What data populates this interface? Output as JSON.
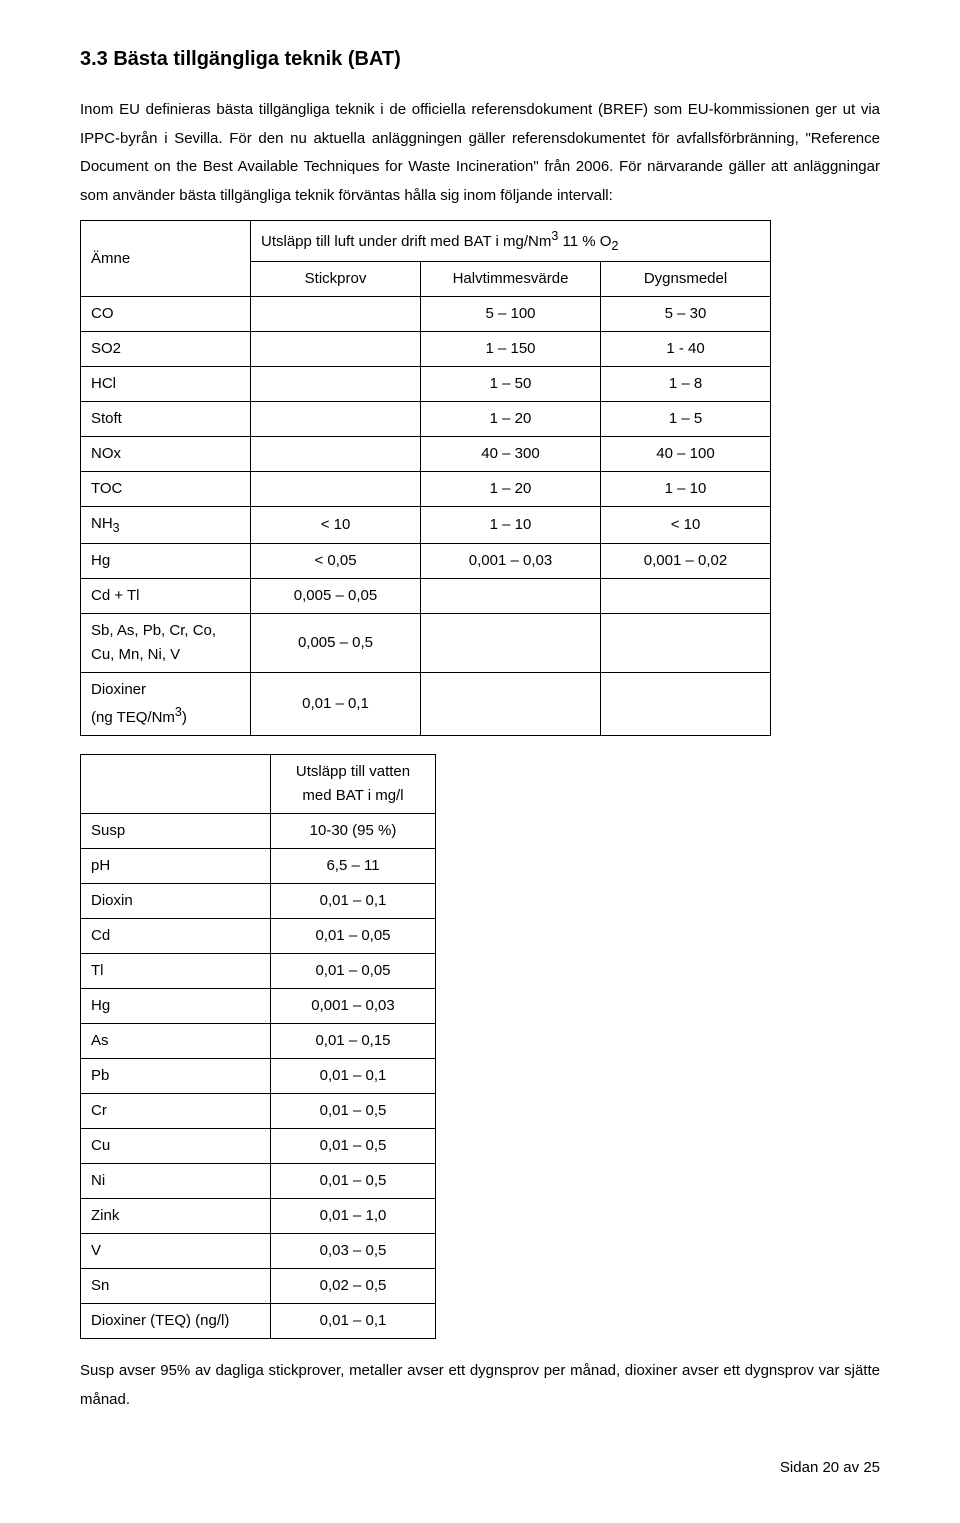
{
  "heading": "3.3 Bästa tillgängliga teknik (BAT)",
  "para1": "Inom EU definieras bästa tillgängliga teknik i de officiella referensdokument (BREF) som EU-kommissionen ger ut via IPPC-byrån i Sevilla. För den nu aktuella anläggningen gäller referensdokumentet för avfallsförbränning, \"Reference Document on the Best Available Techniques for Waste Incineration\" från 2006. För närvarande gäller att anläggningar som använder bästa tillgängliga teknik förväntas hålla sig inom följande intervall:",
  "air_table": {
    "col1_header": "Ämne",
    "caption_row1": "Utsläpp till luft under drift med BAT i mg/Nm",
    "caption_sup": "3",
    "caption_tail": " 11 % O",
    "caption_sub": "2",
    "sub_headers": [
      "Stickprov",
      "Halvtimmesvärde",
      "Dygnsmedel"
    ],
    "rows": [
      {
        "label": "CO",
        "c2": "",
        "c3": "5 – 100",
        "c4": "5 – 30"
      },
      {
        "label": "SO2",
        "c2": "",
        "c3": "1 – 150",
        "c4": "1 - 40"
      },
      {
        "label": "HCl",
        "c2": "",
        "c3": "1 – 50",
        "c4": "1 – 8"
      },
      {
        "label": "Stoft",
        "c2": "",
        "c3": "1 – 20",
        "c4": "1 – 5"
      },
      {
        "label": "NOx",
        "c2": "",
        "c3": "40 – 300",
        "c4": "40 – 100"
      },
      {
        "label": "TOC",
        "c2": "",
        "c3": "1 – 20",
        "c4": "1 – 10"
      },
      {
        "label_html": "NH<sub>3</sub>",
        "c2": "< 10",
        "c3": "1 – 10",
        "c4": "< 10"
      },
      {
        "label": "Hg",
        "c2": "< 0,05",
        "c3": "0,001 – 0,03",
        "c4": "0,001 – 0,02"
      },
      {
        "label": "Cd + Tl",
        "c2": "0,005 – 0,05",
        "c3": "",
        "c4": ""
      },
      {
        "label_html": "Sb, As, Pb, Cr, Co,<br>Cu, Mn, Ni, V",
        "c2": "0,005 – 0,5",
        "c3": "",
        "c4": ""
      },
      {
        "label_html": "Dioxiner<br>(ng TEQ/Nm<sup>3</sup>)",
        "c2": "0,01 – 0,1",
        "c3": "",
        "c4": ""
      }
    ]
  },
  "water_table": {
    "header": "Utsläpp till vatten\nmed BAT i mg/l",
    "rows": [
      [
        "Susp",
        "10-30 (95 %)"
      ],
      [
        "pH",
        "6,5 – 11"
      ],
      [
        "Dioxin",
        "0,01 – 0,1"
      ],
      [
        "Cd",
        "0,01 – 0,05"
      ],
      [
        "Tl",
        "0,01 – 0,05"
      ],
      [
        "Hg",
        "0,001 – 0,03"
      ],
      [
        "As",
        "0,01 – 0,15"
      ],
      [
        "Pb",
        "0,01 – 0,1"
      ],
      [
        "Cr",
        "0,01 – 0,5"
      ],
      [
        "Cu",
        "0,01 – 0,5"
      ],
      [
        "Ni",
        "0,01 – 0,5"
      ],
      [
        "Zink",
        "0,01 – 1,0"
      ],
      [
        "V",
        "0,03 – 0,5"
      ],
      [
        "Sn",
        "0,02 – 0,5"
      ],
      [
        "Dioxiner (TEQ) (ng/l)",
        "0,01 – 0,1"
      ]
    ]
  },
  "para2": "Susp avser 95% av dagliga stickprover, metaller avser ett dygnsprov per månad, dioxiner avser ett dygnsprov var sjätte månad.",
  "footer": "Sidan 20 av 25"
}
